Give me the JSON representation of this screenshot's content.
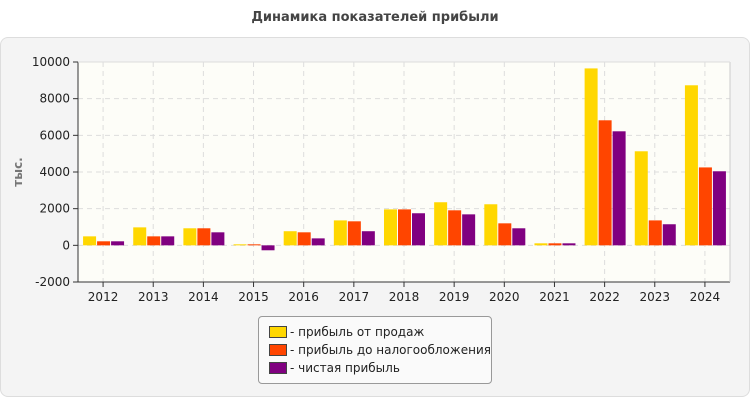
{
  "chart_data": {
    "type": "bar",
    "title": "Динамика показателей прибыли",
    "ylabel": "тыс.",
    "xlabel": "",
    "ylim": [
      -2000,
      10000
    ],
    "yticks": [
      -2000,
      0,
      2000,
      4000,
      6000,
      8000,
      10000
    ],
    "grid": true,
    "legend_position": "bottom",
    "categories": [
      "2012",
      "2013",
      "2014",
      "2015",
      "2016",
      "2017",
      "2018",
      "2019",
      "2020",
      "2021",
      "2022",
      "2023",
      "2024"
    ],
    "series": [
      {
        "name": "- прибыль от продаж",
        "color": "#FFD700",
        "values": [
          490,
          980,
          930,
          55,
          770,
          1360,
          1960,
          2350,
          2240,
          110,
          9650,
          5130,
          8730
        ]
      },
      {
        "name": "- прибыль до налогообложения",
        "color": "#FF4500",
        "values": [
          220,
          490,
          930,
          55,
          710,
          1310,
          1960,
          1910,
          1200,
          110,
          6820,
          1360,
          4250
        ]
      },
      {
        "name": "- чистая прибыль",
        "color": "#800080",
        "values": [
          220,
          490,
          710,
          -270,
          380,
          770,
          1750,
          1690,
          930,
          110,
          6220,
          1150,
          4040
        ]
      }
    ]
  }
}
